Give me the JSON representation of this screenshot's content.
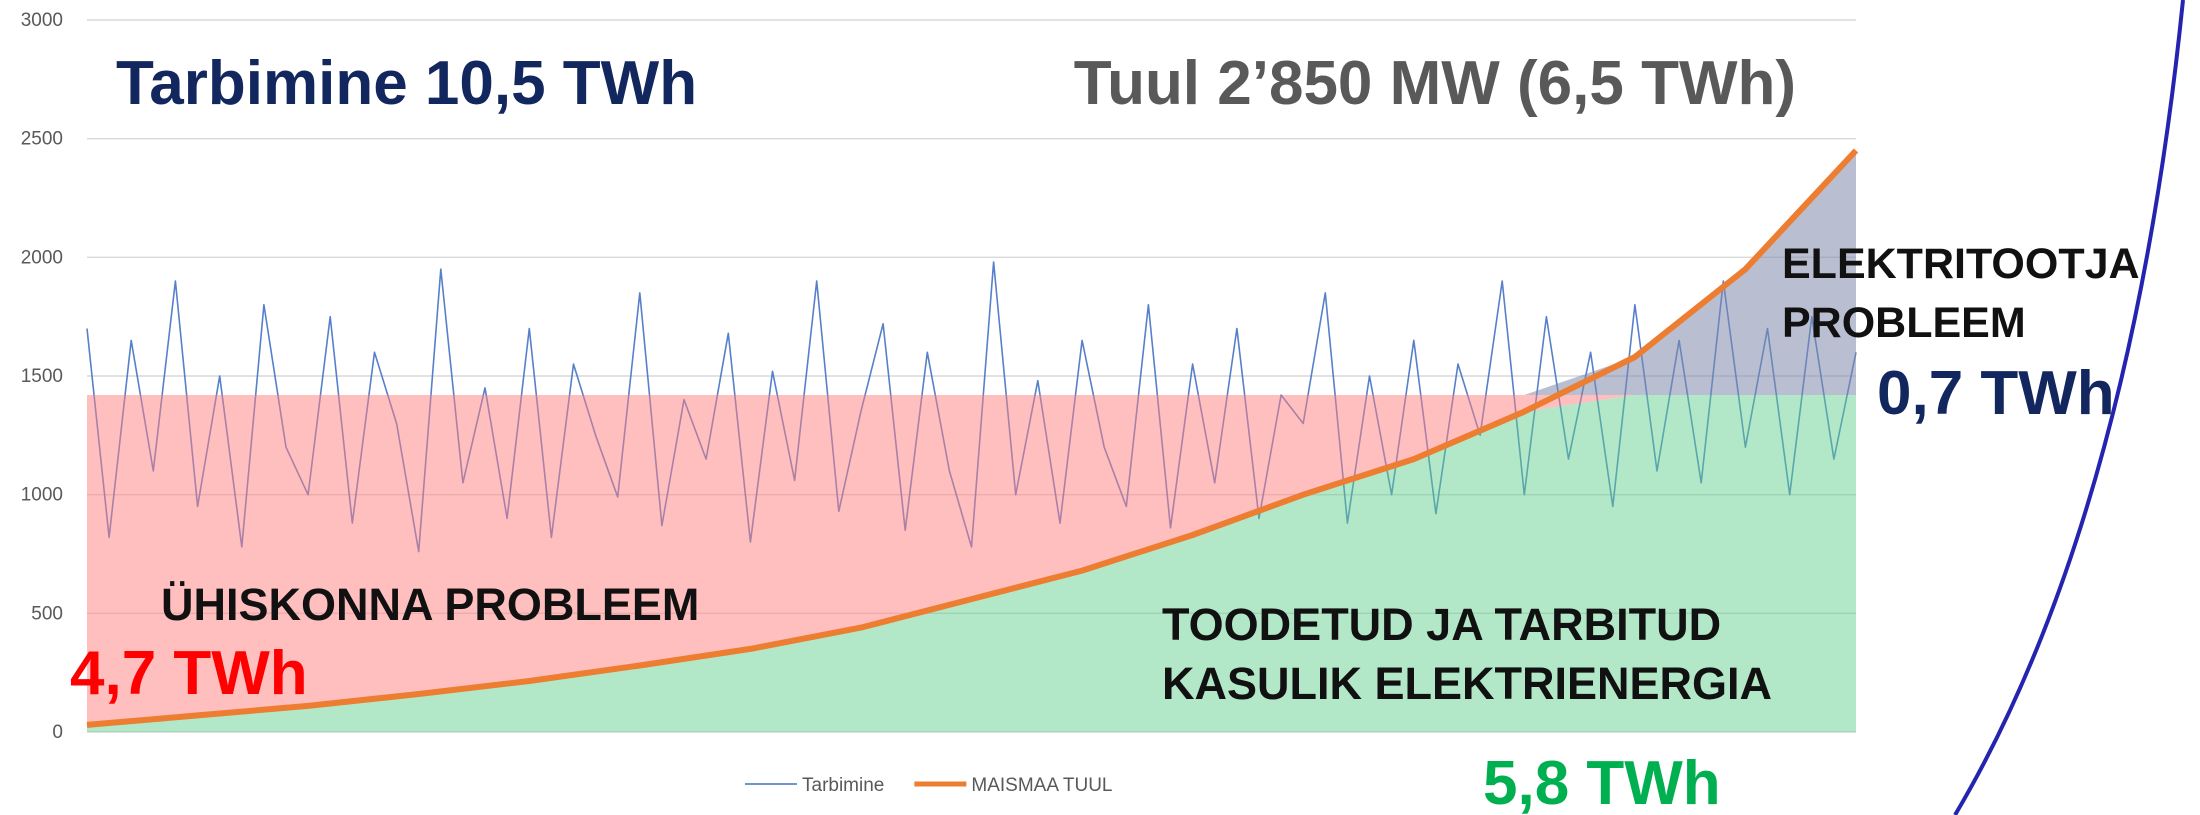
{
  "chart_data": {
    "type": "line",
    "series": [
      {
        "name": "Tarbimine",
        "color": "#4472c4",
        "x": [
          0,
          1,
          2,
          3,
          4,
          5,
          6,
          7,
          8,
          9,
          10,
          11,
          12,
          13,
          14,
          15,
          16,
          17,
          18,
          19,
          20,
          21,
          22,
          23,
          24,
          25,
          26,
          27,
          28,
          29,
          30,
          31,
          32,
          33,
          34,
          35,
          36,
          37,
          38,
          39,
          40,
          41,
          42,
          43,
          44,
          45,
          46,
          47,
          48,
          49,
          50,
          51,
          52,
          53,
          54,
          55,
          56,
          57,
          58,
          59,
          60,
          61,
          62,
          63,
          64,
          65,
          66,
          67,
          68,
          69,
          70,
          71,
          72,
          73,
          74,
          75,
          76,
          77,
          78,
          79,
          80
        ],
        "values": [
          1700,
          820,
          1650,
          1100,
          1900,
          950,
          1500,
          780,
          1800,
          1200,
          1000,
          1750,
          880,
          1600,
          1300,
          760,
          1950,
          1050,
          1450,
          900,
          1700,
          820,
          1550,
          1250,
          990,
          1850,
          870,
          1400,
          1150,
          1680,
          800,
          1520,
          1060,
          1900,
          930,
          1350,
          1720,
          850,
          1600,
          1100,
          780,
          1980,
          1000,
          1480,
          880,
          1650,
          1200,
          950,
          1800,
          860,
          1550,
          1050,
          1700,
          900,
          1420,
          1300,
          1850,
          880,
          1500,
          1000,
          1650,
          920,
          1550,
          1250,
          1900,
          1000,
          1750,
          1150,
          1600,
          950,
          1800,
          1100,
          1650,
          1050,
          1900,
          1200,
          1700,
          1000,
          1750,
          1150,
          1600
        ]
      },
      {
        "name": "MAISMAA TUUL",
        "color": "#ed7d31",
        "x": [
          0,
          5,
          10,
          15,
          20,
          25,
          30,
          35,
          40,
          45,
          50,
          55,
          60,
          65,
          70,
          75,
          80
        ],
        "values": [
          30,
          70,
          110,
          160,
          215,
          280,
          350,
          440,
          560,
          680,
          830,
          1000,
          1150,
          1350,
          1580,
          1950,
          2450
        ]
      }
    ],
    "reference_level": 1420,
    "xlim": [
      0,
      80
    ],
    "ylim": [
      0,
      3000
    ],
    "yticks": [
      0,
      500,
      1000,
      1500,
      2000,
      2500,
      3000
    ],
    "grid": true,
    "legend": "bottom",
    "annotations": {
      "consumption": "Tarbimine 10,5 TWh",
      "wind": "Tuul 2’850 MW (6,5 TWh)",
      "society_problem": "ÜHISKONNA PROBLEEM",
      "society_value": "4,7 TWh",
      "useful": [
        "TOODETUD JA TARBITUD",
        "KASULIK ELEKTRIENERGIA"
      ],
      "useful_value": "5,8 TWh",
      "producer_problem": [
        "ELEKTRITOOTJA",
        "PROBLEEM"
      ],
      "producer_value": "0,7 TWh"
    }
  }
}
